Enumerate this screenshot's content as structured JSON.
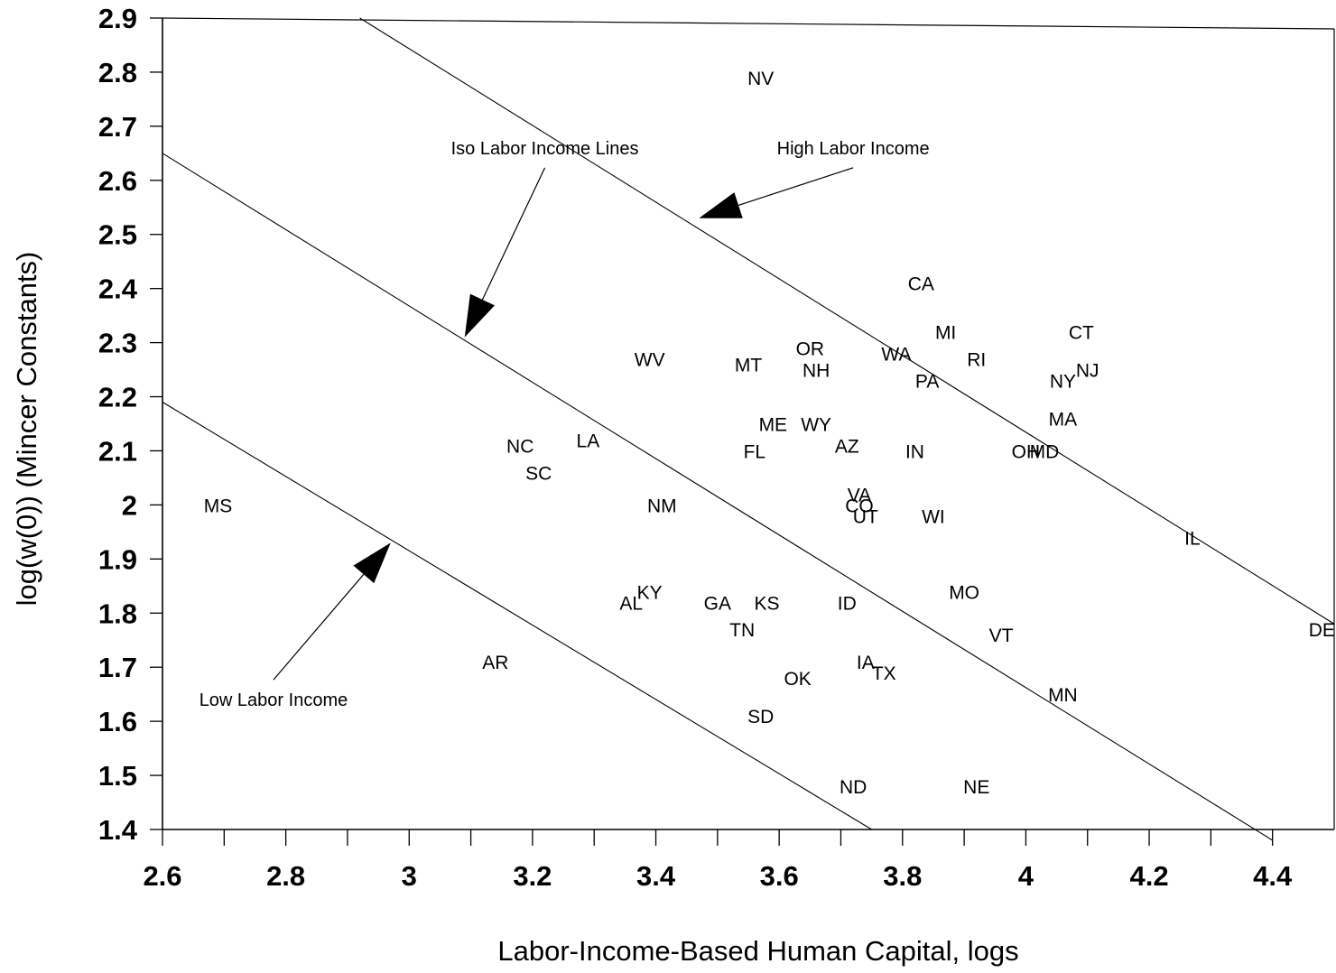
{
  "chart_data": {
    "type": "scatter",
    "xlabel": "Labor-Income-Based Human Capital, logs",
    "ylabel": "log(w(0)) (Mincer Constants)",
    "xlim": [
      2.6,
      4.5
    ],
    "ylim": [
      1.4,
      2.9
    ],
    "x_ticks": [
      {
        "value": 2.6,
        "label": "2.6"
      },
      {
        "value": 2.8,
        "label": "2.8"
      },
      {
        "value": 3.0,
        "label": "3"
      },
      {
        "value": 3.2,
        "label": "3.2"
      },
      {
        "value": 3.4,
        "label": "3.4"
      },
      {
        "value": 3.6,
        "label": "3.6"
      },
      {
        "value": 3.8,
        "label": "3.8"
      },
      {
        "value": 4.0,
        "label": "4"
      },
      {
        "value": 4.2,
        "label": "4.2"
      },
      {
        "value": 4.4,
        "label": "4.4"
      }
    ],
    "y_ticks": [
      {
        "value": 1.4,
        "label": "1.4"
      },
      {
        "value": 1.5,
        "label": "1.5"
      },
      {
        "value": 1.6,
        "label": "1.6"
      },
      {
        "value": 1.7,
        "label": "1.7"
      },
      {
        "value": 1.8,
        "label": "1.8"
      },
      {
        "value": 1.9,
        "label": "1.9"
      },
      {
        "value": 2.0,
        "label": "2"
      },
      {
        "value": 2.1,
        "label": "2.1"
      },
      {
        "value": 2.2,
        "label": "2.2"
      },
      {
        "value": 2.3,
        "label": "2.3"
      },
      {
        "value": 2.4,
        "label": "2.4"
      },
      {
        "value": 2.5,
        "label": "2.5"
      },
      {
        "value": 2.6,
        "label": "2.6"
      },
      {
        "value": 2.7,
        "label": "2.7"
      },
      {
        "value": 2.8,
        "label": "2.8"
      },
      {
        "value": 2.9,
        "label": "2.9"
      }
    ],
    "grid": false,
    "points": [
      {
        "label": "NV",
        "x": 3.57,
        "y": 2.79
      },
      {
        "label": "CA",
        "x": 3.83,
        "y": 2.41
      },
      {
        "label": "MI",
        "x": 3.87,
        "y": 2.32
      },
      {
        "label": "CT",
        "x": 4.09,
        "y": 2.32
      },
      {
        "label": "OR",
        "x": 3.65,
        "y": 2.29
      },
      {
        "label": "WA",
        "x": 3.79,
        "y": 2.28
      },
      {
        "label": "RI",
        "x": 3.92,
        "y": 2.27
      },
      {
        "label": "WV",
        "x": 3.39,
        "y": 2.27
      },
      {
        "label": "MT",
        "x": 3.55,
        "y": 2.26
      },
      {
        "label": "NH",
        "x": 3.66,
        "y": 2.25
      },
      {
        "label": "NJ",
        "x": 4.1,
        "y": 2.25
      },
      {
        "label": "NY",
        "x": 4.06,
        "y": 2.23
      },
      {
        "label": "PA",
        "x": 3.84,
        "y": 2.23
      },
      {
        "label": "MA",
        "x": 4.06,
        "y": 2.16
      },
      {
        "label": "ME",
        "x": 3.59,
        "y": 2.15
      },
      {
        "label": "WY",
        "x": 3.66,
        "y": 2.15
      },
      {
        "label": "NC",
        "x": 3.18,
        "y": 2.11
      },
      {
        "label": "LA",
        "x": 3.29,
        "y": 2.12
      },
      {
        "label": "AZ",
        "x": 3.71,
        "y": 2.11
      },
      {
        "label": "FL",
        "x": 3.56,
        "y": 2.1
      },
      {
        "label": "IN",
        "x": 3.82,
        "y": 2.1
      },
      {
        "label": "OH",
        "x": 4.0,
        "y": 2.1
      },
      {
        "label": "MD",
        "x": 4.03,
        "y": 2.1
      },
      {
        "label": "SC",
        "x": 3.21,
        "y": 2.06
      },
      {
        "label": "VA",
        "x": 3.73,
        "y": 2.02
      },
      {
        "label": "CO",
        "x": 3.73,
        "y": 2.0
      },
      {
        "label": "MS",
        "x": 2.69,
        "y": 2.0
      },
      {
        "label": "NM",
        "x": 3.41,
        "y": 2.0
      },
      {
        "label": "UT",
        "x": 3.74,
        "y": 1.98
      },
      {
        "label": "WI",
        "x": 3.85,
        "y": 1.98
      },
      {
        "label": "IL",
        "x": 4.27,
        "y": 1.94
      },
      {
        "label": "MO",
        "x": 3.9,
        "y": 1.84
      },
      {
        "label": "KY",
        "x": 3.39,
        "y": 1.84
      },
      {
        "label": "AL",
        "x": 3.36,
        "y": 1.82
      },
      {
        "label": "GA",
        "x": 3.5,
        "y": 1.82
      },
      {
        "label": "KS",
        "x": 3.58,
        "y": 1.82
      },
      {
        "label": "ID",
        "x": 3.71,
        "y": 1.82
      },
      {
        "label": "TN",
        "x": 3.54,
        "y": 1.77
      },
      {
        "label": "VT",
        "x": 3.96,
        "y": 1.76
      },
      {
        "label": "DE",
        "x": 4.48,
        "y": 1.77
      },
      {
        "label": "AR",
        "x": 3.14,
        "y": 1.71
      },
      {
        "label": "IA",
        "x": 3.74,
        "y": 1.71
      },
      {
        "label": "TX",
        "x": 3.77,
        "y": 1.69
      },
      {
        "label": "OK",
        "x": 3.63,
        "y": 1.68
      },
      {
        "label": "MN",
        "x": 4.06,
        "y": 1.65
      },
      {
        "label": "SD",
        "x": 3.57,
        "y": 1.61
      },
      {
        "label": "ND",
        "x": 3.72,
        "y": 1.48
      },
      {
        "label": "NE",
        "x": 3.92,
        "y": 1.48
      }
    ],
    "iso_lines": [
      {
        "x": [
          2.92,
          4.5
        ],
        "y": [
          2.9,
          1.78
        ]
      },
      {
        "x": [
          2.6,
          4.4
        ],
        "y": [
          2.65,
          1.38
        ]
      },
      {
        "x": [
          2.6,
          3.75
        ],
        "y": [
          2.19,
          1.4
        ]
      }
    ],
    "annotations": [
      {
        "text": "High Labor Income",
        "x": 3.72,
        "y": 2.66,
        "arrow_to": [
          3.47,
          2.53
        ]
      },
      {
        "text": "Iso Labor Income Lines",
        "x": 3.22,
        "y": 2.66,
        "arrow_to": [
          3.09,
          2.31
        ]
      },
      {
        "text": "Low Labor Income",
        "x": 2.78,
        "y": 1.64,
        "arrow_to": [
          2.97,
          1.93
        ]
      }
    ]
  }
}
